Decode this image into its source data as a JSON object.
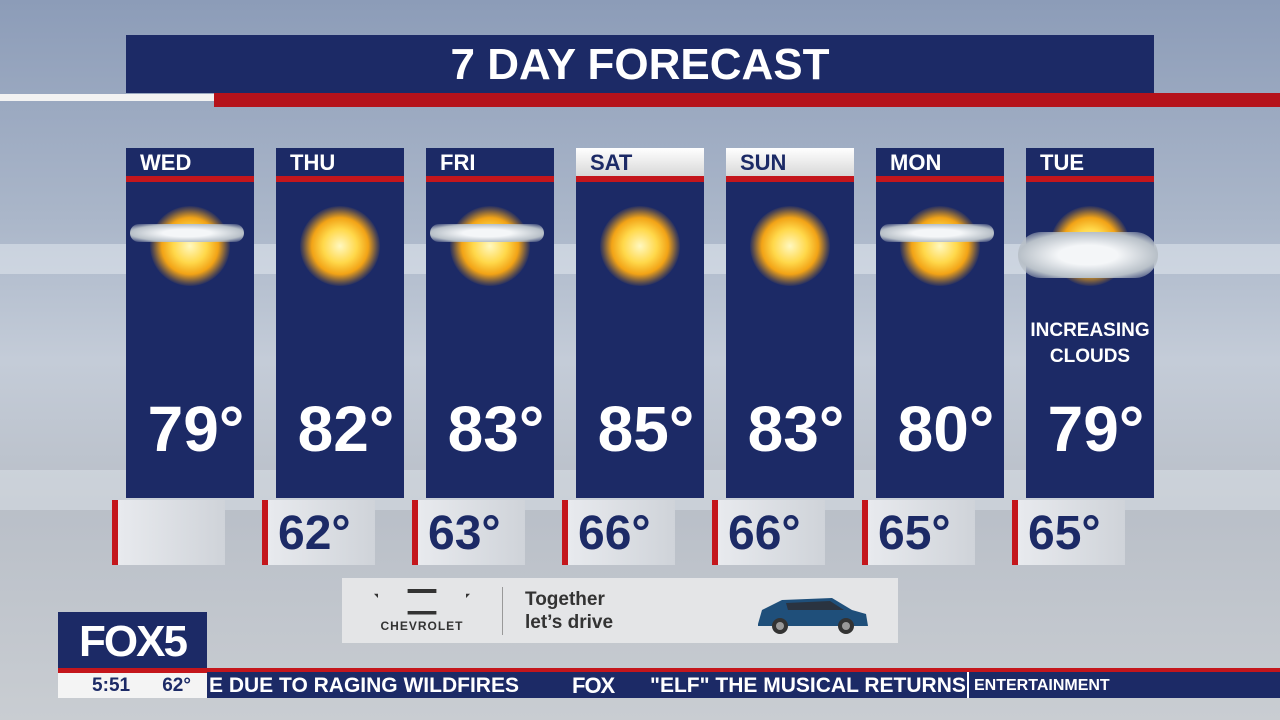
{
  "title": "7 DAY FORECAST",
  "days": [
    {
      "day": "WED",
      "icon": "mostly-sunny",
      "condition": "",
      "high": "79°",
      "low": ""
    },
    {
      "day": "THU",
      "icon": "sunny",
      "condition": "",
      "high": "82°",
      "low": "62°"
    },
    {
      "day": "FRI",
      "icon": "mostly-sunny",
      "condition": "",
      "high": "83°",
      "low": "63°"
    },
    {
      "day": "SAT",
      "icon": "sunny",
      "condition": "",
      "high": "85°",
      "low": "66°"
    },
    {
      "day": "SUN",
      "icon": "sunny",
      "condition": "",
      "high": "83°",
      "low": "66°"
    },
    {
      "day": "MON",
      "icon": "mostly-sunny",
      "condition": "",
      "high": "80°",
      "low": "65°"
    },
    {
      "day": "TUE",
      "icon": "partly-cloudy",
      "condition": "INCREASING CLOUDS",
      "high": "79°",
      "low": "65°"
    }
  ],
  "ad": {
    "brand": "CHEVROLET",
    "tagline_1": "Together",
    "tagline_2": "let’s drive"
  },
  "station": {
    "logo": "FOX5",
    "time": "5:51",
    "temp": "62°"
  },
  "ticker": {
    "headline_1": "E DUE TO RAGING WILDFIRES",
    "network": "FOX",
    "headline_2": "\"ELF\" THE MUSICAL RETURNS",
    "category": "ENTERTAINMENT"
  },
  "colors": {
    "navy": "#1c2a66",
    "red": "#c4161c"
  }
}
